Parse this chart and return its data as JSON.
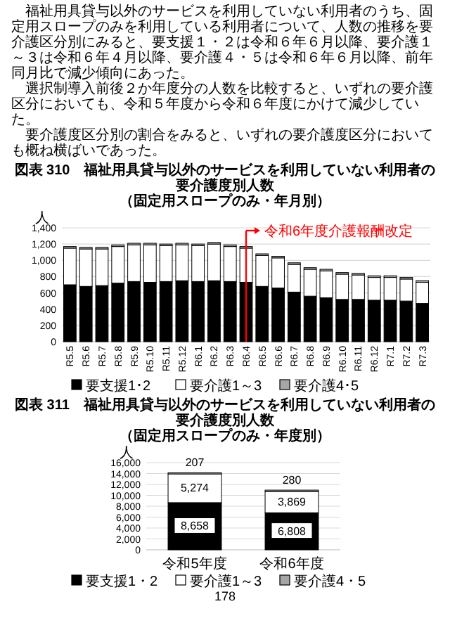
{
  "chart_data": [
    {
      "type": "bar",
      "stacked": true,
      "title": "図表 310　福祉用具貸与以外のサービスを利用していない利用者の要介護度別人数",
      "subtitle": "（固定用スロープのみ・年月別）",
      "ylabel": "人",
      "annotations": [
        "福祉用具貸与以外のサービスを利用していない利用者のうち、固定用スロープのみを利用している利用者について、人数の推移を要介護区分別にみると、要支援１・２は令和６年６月以降、要介護１～３は令和６年４月以降、要介護４・５は令和６年６月以降、前年同月比で減少傾向にあった。",
        "選択制導入前後２か年度分の人数を比較すると、いずれの要介護区分においても、令和５年度から令和６年度にかけて減少していた。",
        "要介護度区分別の割合をみると、いずれの要介護度区分においても概ね横ばいであった。"
      ],
      "categories": [
        "R5.5",
        "R5.6",
        "R5.7",
        "R5.8",
        "R5.9",
        "R5.10",
        "R5.11",
        "R5.12",
        "R6.1",
        "R6.2",
        "R6.3",
        "R6.4",
        "R6.5",
        "R6.6",
        "R6.7",
        "R6.8",
        "R6.9",
        "R6.10",
        "R6.11",
        "R6.12",
        "R7.1",
        "R7.2",
        "R7.3"
      ],
      "series": [
        {
          "name": "要支援1･2",
          "color": "#000000",
          "values": [
            700,
            680,
            690,
            720,
            740,
            730,
            740,
            750,
            740,
            750,
            740,
            730,
            680,
            660,
            610,
            560,
            540,
            520,
            520,
            510,
            510,
            500,
            470
          ]
        },
        {
          "name": "要介護1～3",
          "color": "#ffffff",
          "values": [
            450,
            460,
            450,
            450,
            450,
            460,
            440,
            440,
            440,
            450,
            430,
            420,
            380,
            370,
            340,
            330,
            330,
            310,
            300,
            280,
            280,
            270,
            260
          ]
        },
        {
          "name": "要介護4･5",
          "color": "#a6a6a6",
          "values": [
            20,
            20,
            20,
            20,
            20,
            20,
            20,
            20,
            20,
            20,
            20,
            20,
            20,
            20,
            20,
            20,
            20,
            20,
            20,
            20,
            20,
            20,
            20
          ]
        }
      ],
      "ylim": [
        0,
        1400
      ],
      "yticks": [
        0,
        200,
        400,
        600,
        800,
        {
          "value": 1000,
          "label": "1,000"
        },
        {
          "value": 1200,
          "label": "1,200"
        },
        {
          "value": 1400,
          "label": "1,400"
        }
      ],
      "ref_lines": [
        {
          "axis": "x",
          "value": "R6.4",
          "label": "令和6年度介護報酬改定",
          "color": "#ff0000"
        }
      ],
      "grid": "y",
      "legend": "bottom"
    },
    {
      "type": "bar",
      "stacked": true,
      "title": "図表 311　福祉用具貸与以外のサービスを利用していない利用者の要介護度別人数",
      "subtitle": "（固定用スロープのみ・年度別）",
      "ylabel": "人",
      "annotations": [
        "178"
      ],
      "categories": [
        "令和5年度",
        "令和6年度"
      ],
      "series": [
        {
          "name": "要支援1・2",
          "color": "#000000",
          "values": [
            8658,
            6808
          ],
          "value_labels": [
            "8,658",
            "6,808"
          ]
        },
        {
          "name": "要介護1～3",
          "color": "#ffffff",
          "values": [
            5274,
            3869
          ],
          "value_labels": [
            "5,274",
            "3,869"
          ]
        },
        {
          "name": "要介護4・5",
          "color": "#a6a6a6",
          "values": [
            207,
            280
          ],
          "value_labels": [
            "207",
            "280"
          ]
        }
      ],
      "ylim": [
        0,
        16000
      ],
      "yticks": [
        0,
        {
          "value": 2000,
          "label": "2,000"
        },
        {
          "value": 4000,
          "label": "4,000"
        },
        {
          "value": 6000,
          "label": "6,000"
        },
        {
          "value": 8000,
          "label": "8,000"
        },
        {
          "value": 10000,
          "label": "10,000"
        },
        {
          "value": 12000,
          "label": "12,000"
        },
        {
          "value": 14000,
          "label": "14,000"
        },
        {
          "value": 16000,
          "label": "16,000"
        }
      ],
      "grid": "y",
      "legend": "bottom"
    }
  ]
}
